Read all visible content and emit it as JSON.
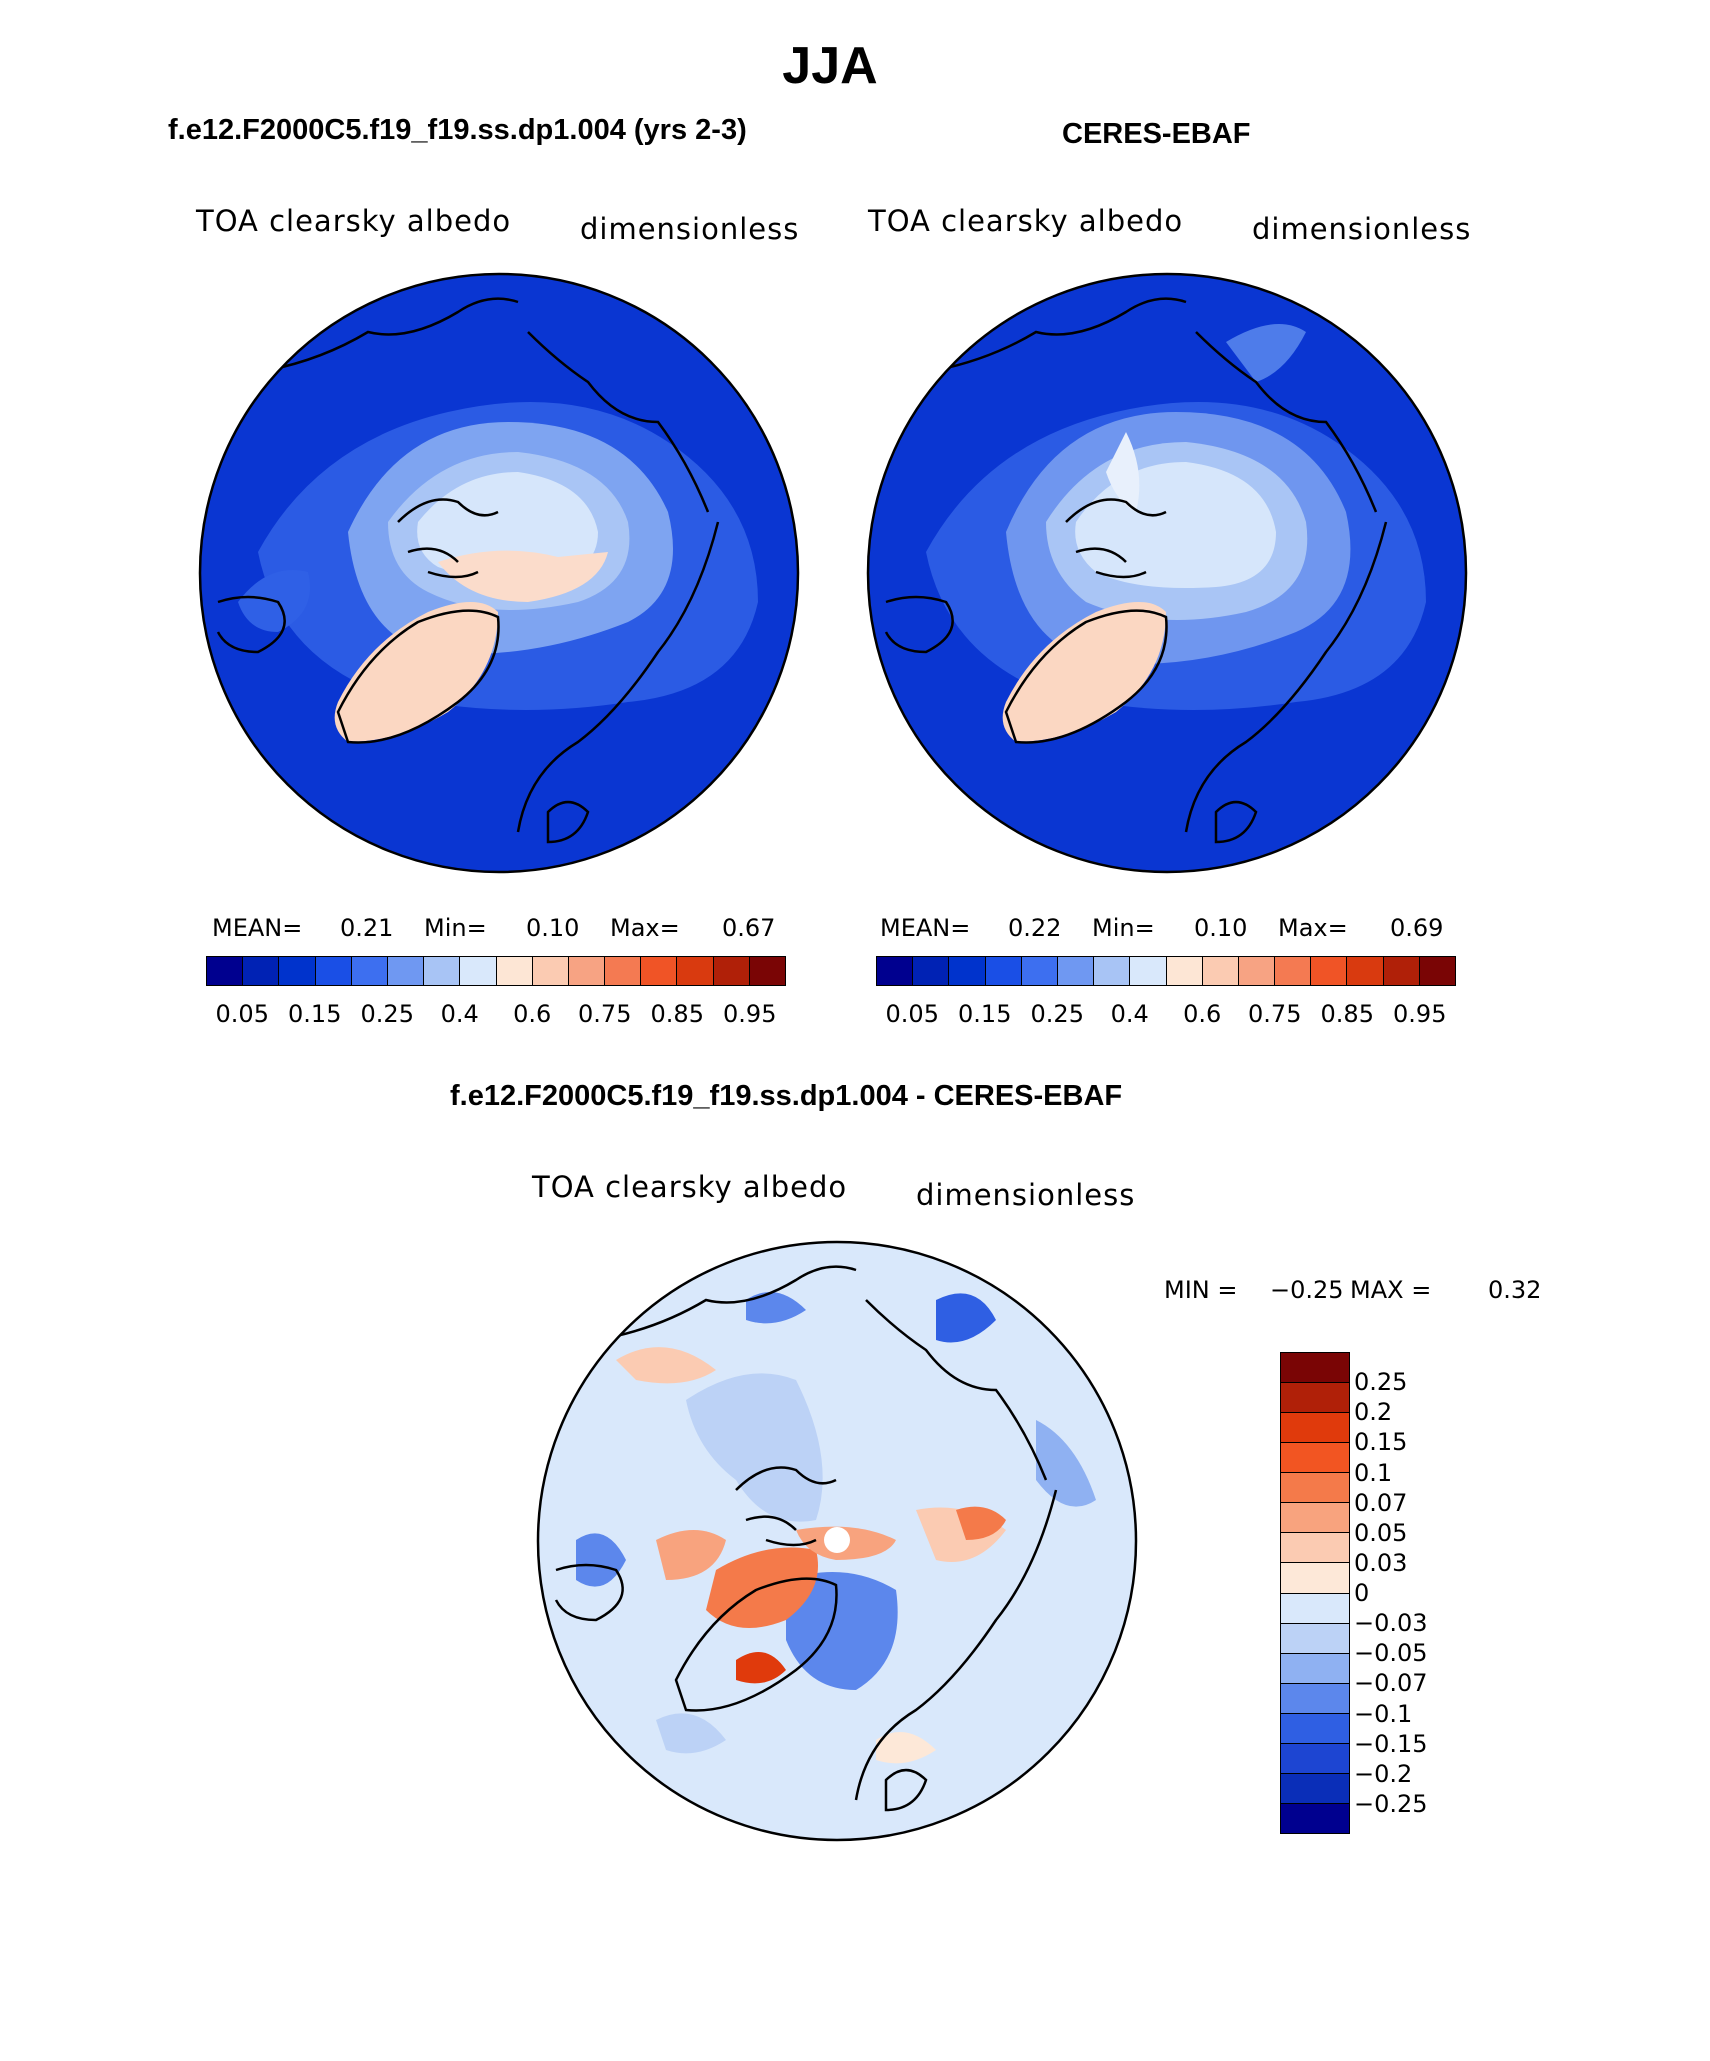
{
  "title": "JJA",
  "panels": {
    "model": {
      "title": "f.e12.F2000C5.f19_f19.ss.dp1.004 (yrs 2-3)",
      "variable": "TOA clearsky albedo",
      "units": "dimensionless",
      "mean_label": "MEAN=",
      "mean": "0.21",
      "min_label": "Min=",
      "min": "0.10",
      "max_label": "Max=",
      "max": "0.67"
    },
    "obs": {
      "title": "CERES-EBAF",
      "variable": "TOA clearsky albedo",
      "units": "dimensionless",
      "mean_label": "MEAN=",
      "mean": "0.22",
      "min_label": "Min=",
      "min": "0.10",
      "max_label": "Max=",
      "max": "0.69"
    },
    "diff": {
      "title": "f.e12.F2000C5.f19_f19.ss.dp1.004 - CERES-EBAF",
      "variable": "TOA clearsky albedo",
      "units": "dimensionless",
      "min_label": "MIN =",
      "min": "−0.25",
      "max_label": "MAX =",
      "max": "0.32"
    }
  },
  "colorbars": {
    "abs": {
      "colors": [
        "#00008f",
        "#0022b4",
        "#0033cc",
        "#1a4fe6",
        "#3d6ff0",
        "#6f98f2",
        "#a8c4f5",
        "#d9e8fb",
        "#fde6d5",
        "#fbcbb2",
        "#f7a383",
        "#f47a52",
        "#f05426",
        "#d93a0f",
        "#b02008",
        "#7a0505"
      ],
      "tick_labels": [
        "0.05",
        "0.15",
        "0.25",
        "0.4",
        "0.6",
        "0.75",
        "0.85",
        "0.95"
      ]
    },
    "diff": {
      "colors": [
        "#7a0505",
        "#b02008",
        "#e03a0c",
        "#f25522",
        "#f47a4a",
        "#f8a37e",
        "#fbcbb2",
        "#fde8d8",
        "#d9e8fb",
        "#bcd2f6",
        "#8fb1f2",
        "#5c87ec",
        "#2f5fe3",
        "#1d45d2",
        "#0a2eb8",
        "#00008f"
      ],
      "tick_labels": [
        "0.25",
        "0.2",
        "0.15",
        "0.1",
        "0.07",
        "0.05",
        "0.03",
        "0",
        "−0.03",
        "−0.05",
        "−0.07",
        "−0.1",
        "−0.15",
        "−0.2",
        "−0.25"
      ]
    }
  }
}
